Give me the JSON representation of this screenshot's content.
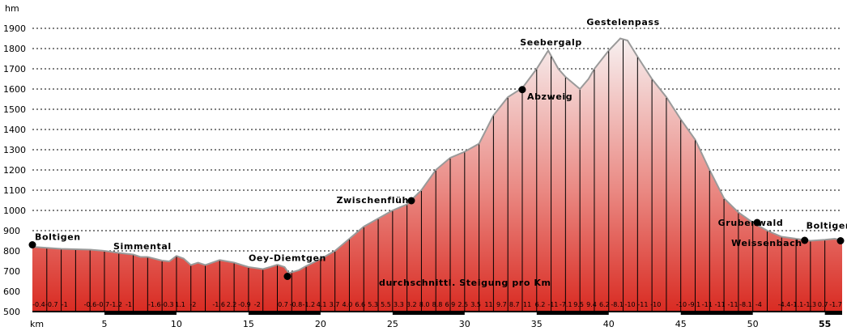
{
  "chart_data": {
    "type": "area",
    "title": "",
    "xlabel": "km",
    "ylabel": "hm",
    "xlim": [
      0,
      56.2
    ],
    "ylim": [
      500,
      1900
    ],
    "y_ticks": [
      500,
      600,
      700,
      800,
      900,
      1000,
      1100,
      1200,
      1300,
      1400,
      1500,
      1600,
      1700,
      1800,
      1900
    ],
    "x_ticks": [
      {
        "value": 5,
        "label": "5"
      },
      {
        "value": 10,
        "label": "10"
      },
      {
        "value": 15,
        "label": "15"
      },
      {
        "value": 20,
        "label": "20"
      },
      {
        "value": 25,
        "label": "25"
      },
      {
        "value": 30,
        "label": "30"
      },
      {
        "value": 35,
        "label": "35"
      },
      {
        "value": 40,
        "label": "40"
      },
      {
        "value": 45,
        "label": "45"
      },
      {
        "value": 50,
        "label": "50"
      },
      {
        "value": 55,
        "label": "55"
      }
    ],
    "grid": "horizontal-dashed",
    "series": [
      {
        "x": [
          0,
          1,
          2,
          3,
          4,
          5,
          6,
          7,
          7.5,
          8,
          9,
          9.5,
          10,
          10.5,
          11,
          11.5,
          12,
          13,
          14,
          15,
          16,
          16.5,
          17,
          17.5,
          17.8,
          18.5,
          19,
          20,
          21,
          22,
          23,
          24,
          25,
          26,
          27,
          28,
          29,
          30,
          31,
          32,
          33,
          34,
          35,
          35.8,
          36.5,
          37,
          38,
          38.6,
          39,
          40,
          40.8,
          41.3,
          42,
          43,
          44,
          45,
          46,
          47,
          48,
          49,
          50,
          51,
          52,
          53,
          54,
          55,
          55.7,
          56.2
        ],
        "y": [
          820,
          815,
          810,
          808,
          806,
          800,
          790,
          782,
          770,
          770,
          752,
          748,
          775,
          762,
          730,
          742,
          730,
          755,
          742,
          720,
          710,
          720,
          732,
          720,
          690,
          705,
          725,
          760,
          800,
          860,
          920,
          960,
          1000,
          1030,
          1100,
          1200,
          1260,
          1290,
          1330,
          1470,
          1560,
          1605,
          1700,
          1790,
          1700,
          1660,
          1600,
          1650,
          1700,
          1790,
          1850,
          1840,
          1760,
          1650,
          1560,
          1450,
          1350,
          1200,
          1060,
          990,
          940,
          900,
          870,
          860,
          850,
          855,
          860,
          850
        ]
      }
    ],
    "waypoints": [
      {
        "name": "Boltigen",
        "x": 0,
        "y": 830
      },
      {
        "name": "Oey-Diemtgen",
        "x": 17.7,
        "y": 674
      },
      {
        "name": "Zwischenflüh",
        "x": 26.3,
        "y": 1048
      },
      {
        "name": "Abzweig",
        "x": 34,
        "y": 1597
      },
      {
        "name": "Seebergalp",
        "x": 36,
        "y": 1792
      },
      {
        "name": "Gestelenpass",
        "x": 41,
        "y": 1852
      },
      {
        "name": "Grubenwald",
        "x": 50.3,
        "y": 940
      },
      {
        "name": "Weissenbach",
        "x": 53.6,
        "y": 852
      },
      {
        "name": "Boltigen",
        "x": 56.2,
        "y": 850
      }
    ],
    "annotations": [
      "Simmental",
      "durchschnittl. Steigung pro Km"
    ],
    "gradients": [
      "-0.4",
      "-0.7",
      "-1",
      "",
      "-0.6",
      "-0.7",
      "-1.2",
      "-1",
      "",
      "-1.6",
      "-0.3",
      "1.1",
      "-2",
      "",
      "-1.6",
      "2.2",
      "-0.9",
      "-2",
      "",
      "0.7",
      "-0.8",
      "-1.2",
      "4.1",
      "3.7",
      "4.0",
      "6.6",
      "5.3",
      "5.5",
      "3.3",
      "3.2",
      "8.0",
      "8.8",
      "6.9",
      "2.5",
      "3.5",
      "11",
      "9.7",
      "8.7",
      "11",
      "6.2",
      "-11",
      "-7.1",
      "9.5",
      "9.4",
      "6.2",
      "-8.1",
      "-10",
      "-11",
      "-10",
      "",
      "-10",
      "-9.1",
      "-11",
      "-11",
      "-11",
      "-8.1",
      "-4",
      "",
      "-4.4",
      "-1.1",
      "-1.3",
      "0.7",
      "-1.7"
    ],
    "colors": {
      "fill_top": "#f7f0f0",
      "fill_bottom": "#d92b22",
      "outline": "#9a9a9a"
    }
  }
}
